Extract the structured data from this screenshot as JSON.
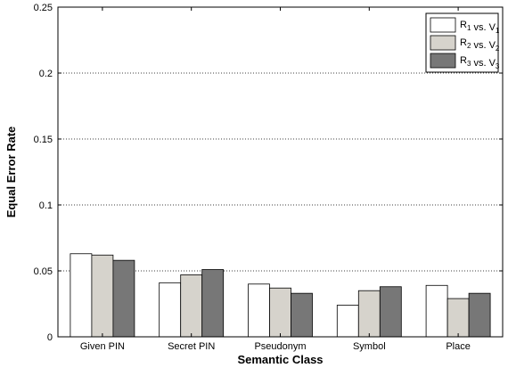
{
  "chart_data": {
    "type": "bar",
    "xlabel": "Semantic Class",
    "ylabel": "Equal Error Rate",
    "categories": [
      "Given PIN",
      "Secret PIN",
      "Pseudonym",
      "Symbol",
      "Place"
    ],
    "ylim": [
      0,
      0.25
    ],
    "yticks": [
      "0",
      "0.05",
      "0.1",
      "0.15",
      "0.2",
      "0.25"
    ],
    "grid": "y-dotted",
    "legend_position": "top-right",
    "series": [
      {
        "name": "R1 vs. V1",
        "name_main_a": "R",
        "name_sub_a": "1",
        "name_mid": " vs. V",
        "name_sub_b": "1",
        "color": "#ffffff",
        "values": [
          0.063,
          0.041,
          0.04,
          0.024,
          0.039
        ]
      },
      {
        "name": "R2 vs. V2",
        "name_main_a": "R",
        "name_sub_a": "2",
        "name_mid": " vs. V",
        "name_sub_b": "2",
        "color": "#d6d3cc",
        "values": [
          0.062,
          0.047,
          0.037,
          0.035,
          0.029
        ]
      },
      {
        "name": "R3 vs. V3",
        "name_main_a": "R",
        "name_sub_a": "3",
        "name_mid": " vs. V",
        "name_sub_b": "3",
        "color": "#777777",
        "values": [
          0.058,
          0.051,
          0.033,
          0.038,
          0.033
        ]
      }
    ]
  }
}
